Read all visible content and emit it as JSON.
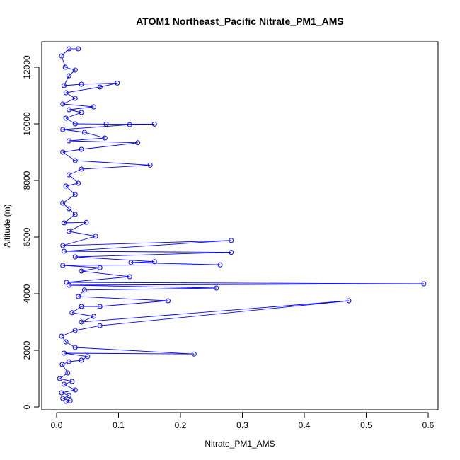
{
  "chart_data": {
    "type": "line",
    "title": "ATOM1 Northeast_Pacific Nitrate_PM1_AMS",
    "xlabel": "Nitrate_PM1_AMS",
    "ylabel": "Altitude (m)",
    "xlim": [
      -0.024,
      0.616
    ],
    "ylim": [
      -100,
      12900
    ],
    "xticks": [
      0.0,
      0.1,
      0.2,
      0.3,
      0.4,
      0.5,
      0.6
    ],
    "xtick_labels": [
      "0.0",
      "0.1",
      "0.2",
      "0.3",
      "0.4",
      "0.5",
      "0.6"
    ],
    "yticks": [
      0,
      2000,
      4000,
      6000,
      8000,
      10000,
      12000
    ],
    "ytick_labels": [
      "0",
      "2000",
      "4000",
      "6000",
      "8000",
      "10000",
      "12000"
    ],
    "grid": false,
    "series": [
      {
        "color": "#0000ff",
        "marker": "open-circle",
        "points": [
          [
            0.015,
            200
          ],
          [
            0.022,
            220
          ],
          [
            0.01,
            300
          ],
          [
            0.02,
            400
          ],
          [
            0.008,
            500
          ],
          [
            0.03,
            600
          ],
          [
            0.012,
            800
          ],
          [
            0.025,
            900
          ],
          [
            0.005,
            1000
          ],
          [
            0.018,
            1200
          ],
          [
            0.009,
            1500
          ],
          [
            0.02,
            1600
          ],
          [
            0.04,
            1650
          ],
          [
            0.05,
            1780
          ],
          [
            0.012,
            1900
          ],
          [
            0.222,
            1870
          ],
          [
            0.03,
            2100
          ],
          [
            0.015,
            2300
          ],
          [
            0.008,
            2500
          ],
          [
            0.03,
            2700
          ],
          [
            0.07,
            2870
          ],
          [
            0.472,
            3750
          ],
          [
            0.04,
            3000
          ],
          [
            0.06,
            3200
          ],
          [
            0.025,
            3330
          ],
          [
            0.04,
            3550
          ],
          [
            0.07,
            3550
          ],
          [
            0.18,
            3750
          ],
          [
            0.035,
            3900
          ],
          [
            0.045,
            4130
          ],
          [
            0.258,
            4200
          ],
          [
            0.02,
            4300
          ],
          [
            0.593,
            4350
          ],
          [
            0.016,
            4400
          ],
          [
            0.118,
            4600
          ],
          [
            0.04,
            4800
          ],
          [
            0.07,
            4920
          ],
          [
            0.01,
            5000
          ],
          [
            0.264,
            5020
          ],
          [
            0.12,
            5100
          ],
          [
            0.158,
            5130
          ],
          [
            0.03,
            5300
          ],
          [
            0.282,
            5460
          ],
          [
            0.012,
            5500
          ],
          [
            0.282,
            5880
          ],
          [
            0.01,
            5700
          ],
          [
            0.063,
            6030
          ],
          [
            0.02,
            6200
          ],
          [
            0.048,
            6520
          ],
          [
            0.012,
            6500
          ],
          [
            0.03,
            6800
          ],
          [
            0.02,
            7000
          ],
          [
            0.01,
            7200
          ],
          [
            0.03,
            7500
          ],
          [
            0.015,
            7800
          ],
          [
            0.035,
            7900
          ],
          [
            0.02,
            8200
          ],
          [
            0.04,
            8400
          ],
          [
            0.151,
            8540
          ],
          [
            0.03,
            8700
          ],
          [
            0.01,
            9000
          ],
          [
            0.04,
            9100
          ],
          [
            0.131,
            9330
          ],
          [
            0.02,
            9400
          ],
          [
            0.078,
            9500
          ],
          [
            0.045,
            9700
          ],
          [
            0.01,
            9800
          ],
          [
            0.118,
            9970
          ],
          [
            0.158,
            9990
          ],
          [
            0.08,
            9990
          ],
          [
            0.03,
            10000
          ],
          [
            0.015,
            10200
          ],
          [
            0.04,
            10400
          ],
          [
            0.02,
            10500
          ],
          [
            0.06,
            10600
          ],
          [
            0.01,
            10700
          ],
          [
            0.03,
            10900
          ],
          [
            0.015,
            11100
          ],
          [
            0.07,
            11300
          ],
          [
            0.098,
            11440
          ],
          [
            0.04,
            11400
          ],
          [
            0.012,
            11350
          ],
          [
            0.02,
            11700
          ],
          [
            0.03,
            11900
          ],
          [
            0.014,
            12000
          ],
          [
            0.008,
            12400
          ],
          [
            0.02,
            12650
          ],
          [
            0.035,
            12650
          ]
        ]
      }
    ]
  }
}
